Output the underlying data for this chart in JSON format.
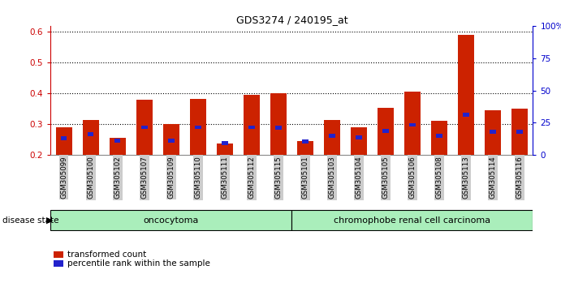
{
  "title": "GDS3274 / 240195_at",
  "samples": [
    "GSM305099",
    "GSM305100",
    "GSM305102",
    "GSM305107",
    "GSM305109",
    "GSM305110",
    "GSM305111",
    "GSM305112",
    "GSM305115",
    "GSM305101",
    "GSM305103",
    "GSM305104",
    "GSM305105",
    "GSM305106",
    "GSM305108",
    "GSM305113",
    "GSM305114",
    "GSM305116"
  ],
  "red_values": [
    0.29,
    0.315,
    0.255,
    0.38,
    0.3,
    0.383,
    0.237,
    0.395,
    0.4,
    0.244,
    0.315,
    0.29,
    0.353,
    0.405,
    0.31,
    0.59,
    0.345,
    0.35
  ],
  "blue_values": [
    0.255,
    0.268,
    0.247,
    0.29,
    0.247,
    0.29,
    0.238,
    0.29,
    0.288,
    0.243,
    0.262,
    0.258,
    0.278,
    0.298,
    0.263,
    0.332,
    0.275,
    0.275
  ],
  "ylim_left": [
    0.2,
    0.62
  ],
  "ylim_right": [
    0,
    100
  ],
  "yticks_left": [
    0.2,
    0.3,
    0.4,
    0.5,
    0.6
  ],
  "yticks_right": [
    0,
    25,
    50,
    75,
    100
  ],
  "ytick_right_labels": [
    "0",
    "25",
    "50",
    "75",
    "100%"
  ],
  "left_color": "#cc0000",
  "right_color": "#0000cc",
  "bar_color": "#cc2200",
  "blue_color": "#2222cc",
  "group1_label": "oncocytoma",
  "group2_label": "chromophobe renal cell carcinoma",
  "group1_count": 9,
  "group2_count": 9,
  "disease_state_label": "disease state",
  "legend1": "transformed count",
  "legend2": "percentile rank within the sample",
  "group_color": "#aaeebb",
  "background_color": "#ffffff",
  "tick_bg_color": "#cccccc",
  "bar_width": 0.6
}
